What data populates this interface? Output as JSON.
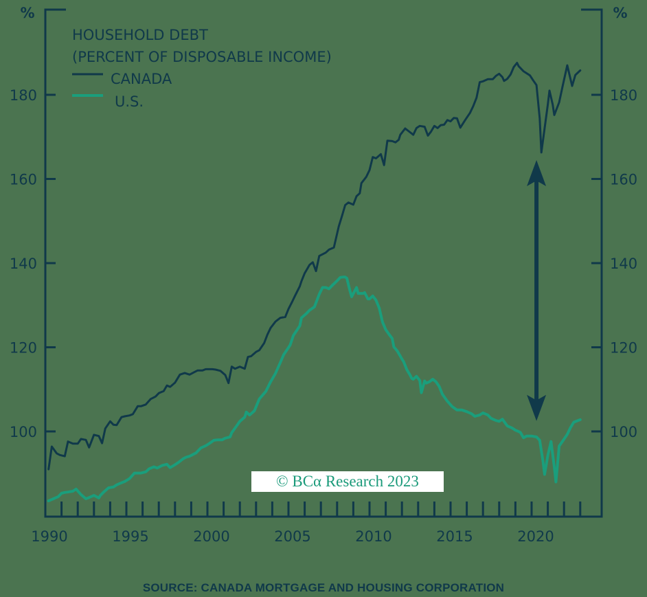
{
  "chart_data": {
    "type": "line",
    "title": "HOUSEHOLD DEBT",
    "subtitle": "(PERCENT OF DISPOSABLE INCOME)",
    "xlabel": "",
    "ylabel": "%",
    "ylabel_right": "%",
    "ylim": [
      80,
      202
    ],
    "xlim": [
      1990,
      2024.3
    ],
    "y_ticks": [
      100,
      120,
      140,
      160,
      180
    ],
    "x_ticks": [
      1990,
      1995,
      2000,
      2005,
      2010,
      2015,
      2020
    ],
    "x_tick_labels": [
      "1990",
      "1995",
      "2000",
      "2005",
      "2010",
      "2015",
      "2020"
    ],
    "grid": false,
    "legend_position": "top-left",
    "source": "SOURCE: CANADA MORTGAGE AND HOUSING CORPORATION",
    "watermark": "© BCα Research 2023",
    "annotations": [
      {
        "type": "double-arrow",
        "x": 2020.3,
        "y_from": 102.5,
        "y_to": 164.5,
        "description": "gap between Canada and U.S. household debt"
      }
    ],
    "series": [
      {
        "name": "CANADA",
        "color": "#10394a",
        "points": [
          [
            1990.2,
            91.0
          ],
          [
            1990.4,
            96.4
          ],
          [
            1990.7,
            94.8
          ],
          [
            1990.9,
            94.4
          ],
          [
            1991.2,
            94.1
          ],
          [
            1991.4,
            97.6
          ],
          [
            1991.7,
            97.1
          ],
          [
            1992.0,
            97.1
          ],
          [
            1992.2,
            98.2
          ],
          [
            1992.5,
            98.0
          ],
          [
            1992.7,
            96.2
          ],
          [
            1993.0,
            99.2
          ],
          [
            1993.3,
            98.9
          ],
          [
            1993.5,
            97.2
          ],
          [
            1993.7,
            100.7
          ],
          [
            1994.0,
            102.4
          ],
          [
            1994.2,
            101.6
          ],
          [
            1994.4,
            101.5
          ],
          [
            1994.7,
            103.4
          ],
          [
            1994.9,
            103.6
          ],
          [
            1995.2,
            103.8
          ],
          [
            1995.4,
            104.1
          ],
          [
            1995.7,
            106.0
          ],
          [
            1995.9,
            106.0
          ],
          [
            1996.2,
            106.4
          ],
          [
            1996.5,
            107.7
          ],
          [
            1996.8,
            108.3
          ],
          [
            1997.0,
            109.1
          ],
          [
            1997.3,
            109.6
          ],
          [
            1997.5,
            110.9
          ],
          [
            1997.7,
            110.6
          ],
          [
            1998.0,
            111.6
          ],
          [
            1998.3,
            113.5
          ],
          [
            1998.6,
            113.9
          ],
          [
            1998.9,
            113.5
          ],
          [
            1999.2,
            114.1
          ],
          [
            1999.4,
            114.5
          ],
          [
            1999.7,
            114.5
          ],
          [
            1999.9,
            114.8
          ],
          [
            2000.3,
            114.8
          ],
          [
            2000.5,
            114.7
          ],
          [
            2000.8,
            114.4
          ],
          [
            2001.1,
            113.4
          ],
          [
            2001.3,
            111.5
          ],
          [
            2001.5,
            115.4
          ],
          [
            2001.7,
            114.9
          ],
          [
            2002.0,
            115.4
          ],
          [
            2002.3,
            114.9
          ],
          [
            2002.5,
            117.7
          ],
          [
            2002.7,
            117.9
          ],
          [
            2003.0,
            118.9
          ],
          [
            2003.2,
            119.3
          ],
          [
            2003.5,
            121.0
          ],
          [
            2003.7,
            123.0
          ],
          [
            2003.9,
            124.6
          ],
          [
            2004.2,
            126.1
          ],
          [
            2004.5,
            127.0
          ],
          [
            2004.8,
            127.2
          ],
          [
            2005.0,
            129.1
          ],
          [
            2005.2,
            130.6
          ],
          [
            2005.4,
            132.2
          ],
          [
            2005.7,
            134.5
          ],
          [
            2005.8,
            135.7
          ],
          [
            2006.0,
            137.6
          ],
          [
            2006.3,
            139.6
          ],
          [
            2006.5,
            140.2
          ],
          [
            2006.7,
            138.1
          ],
          [
            2006.9,
            141.7
          ],
          [
            2007.3,
            142.5
          ],
          [
            2007.5,
            143.2
          ],
          [
            2007.8,
            143.7
          ],
          [
            2008.1,
            148.7
          ],
          [
            2008.3,
            151.2
          ],
          [
            2008.5,
            153.8
          ],
          [
            2008.7,
            154.4
          ],
          [
            2009.0,
            153.9
          ],
          [
            2009.2,
            155.9
          ],
          [
            2009.4,
            156.6
          ],
          [
            2009.5,
            159.0
          ],
          [
            2009.8,
            160.5
          ],
          [
            2010.0,
            162.1
          ],
          [
            2010.2,
            165.2
          ],
          [
            2010.4,
            164.9
          ],
          [
            2010.7,
            165.9
          ],
          [
            2010.9,
            163.3
          ],
          [
            2011.1,
            169.1
          ],
          [
            2011.4,
            169.0
          ],
          [
            2011.6,
            168.7
          ],
          [
            2011.8,
            169.3
          ],
          [
            2011.9,
            170.5
          ],
          [
            2012.2,
            172.0
          ],
          [
            2012.5,
            171.1
          ],
          [
            2012.7,
            170.5
          ],
          [
            2012.9,
            172.1
          ],
          [
            2013.1,
            172.6
          ],
          [
            2013.4,
            172.4
          ],
          [
            2013.6,
            170.3
          ],
          [
            2013.8,
            171.3
          ],
          [
            2014.0,
            172.6
          ],
          [
            2014.2,
            172.1
          ],
          [
            2014.4,
            172.8
          ],
          [
            2014.6,
            172.9
          ],
          [
            2014.8,
            174.0
          ],
          [
            2015.0,
            173.7
          ],
          [
            2015.2,
            174.5
          ],
          [
            2015.4,
            174.4
          ],
          [
            2015.6,
            172.2
          ],
          [
            2015.9,
            174.0
          ],
          [
            2016.2,
            175.7
          ],
          [
            2016.4,
            177.3
          ],
          [
            2016.6,
            179.3
          ],
          [
            2016.8,
            183.0
          ],
          [
            2017.0,
            183.2
          ],
          [
            2017.3,
            183.7
          ],
          [
            2017.6,
            183.7
          ],
          [
            2017.8,
            184.5
          ],
          [
            2018.0,
            185.0
          ],
          [
            2018.2,
            184.2
          ],
          [
            2018.3,
            183.3
          ],
          [
            2018.5,
            183.8
          ],
          [
            2018.7,
            184.8
          ],
          [
            2018.9,
            186.6
          ],
          [
            2019.1,
            187.6
          ],
          [
            2019.2,
            186.8
          ],
          [
            2019.5,
            185.6
          ],
          [
            2019.7,
            185.1
          ],
          [
            2019.9,
            184.6
          ],
          [
            2020.1,
            183.4
          ],
          [
            2020.3,
            182.3
          ],
          [
            2020.5,
            174.4
          ],
          [
            2020.6,
            166.3
          ],
          [
            2020.8,
            172.0
          ],
          [
            2021.0,
            177.7
          ],
          [
            2021.1,
            181.0
          ],
          [
            2021.3,
            177.7
          ],
          [
            2021.4,
            175.2
          ],
          [
            2021.7,
            178.2
          ],
          [
            2021.9,
            181.8
          ],
          [
            2022.2,
            187.0
          ],
          [
            2022.5,
            182.1
          ],
          [
            2022.7,
            184.7
          ],
          [
            2023.0,
            185.8
          ]
        ]
      },
      {
        "name": "U.S.",
        "color": "#1a9e7c",
        "points": [
          [
            1990.2,
            83.5
          ],
          [
            1990.5,
            84.0
          ],
          [
            1990.8,
            84.5
          ],
          [
            1991.0,
            85.3
          ],
          [
            1991.2,
            85.5
          ],
          [
            1991.4,
            85.6
          ],
          [
            1991.7,
            85.8
          ],
          [
            1991.9,
            86.3
          ],
          [
            1992.2,
            85.0
          ],
          [
            1992.5,
            84.0
          ],
          [
            1992.7,
            84.3
          ],
          [
            1993.0,
            84.8
          ],
          [
            1993.3,
            84.2
          ],
          [
            1993.4,
            84.8
          ],
          [
            1993.6,
            85.6
          ],
          [
            1993.9,
            86.6
          ],
          [
            1994.2,
            86.8
          ],
          [
            1994.4,
            87.3
          ],
          [
            1994.7,
            87.8
          ],
          [
            1994.9,
            88.1
          ],
          [
            1995.2,
            88.8
          ],
          [
            1995.5,
            90.1
          ],
          [
            1995.9,
            90.1
          ],
          [
            1996.2,
            90.4
          ],
          [
            1996.4,
            91.1
          ],
          [
            1996.7,
            91.6
          ],
          [
            1996.9,
            91.3
          ],
          [
            1997.2,
            91.9
          ],
          [
            1997.5,
            92.2
          ],
          [
            1997.7,
            91.4
          ],
          [
            1998.0,
            92.1
          ],
          [
            1998.2,
            92.6
          ],
          [
            1998.5,
            93.5
          ],
          [
            1998.7,
            93.9
          ],
          [
            1998.9,
            94.1
          ],
          [
            1999.3,
            94.9
          ],
          [
            1999.6,
            96.1
          ],
          [
            1999.9,
            96.6
          ],
          [
            2000.1,
            97.1
          ],
          [
            2000.4,
            97.9
          ],
          [
            2000.6,
            98.0
          ],
          [
            2000.9,
            98.0
          ],
          [
            2001.1,
            98.4
          ],
          [
            2001.4,
            98.7
          ],
          [
            2001.5,
            99.7
          ],
          [
            2001.8,
            101.3
          ],
          [
            2002.0,
            102.4
          ],
          [
            2002.3,
            103.4
          ],
          [
            2002.4,
            104.6
          ],
          [
            2002.6,
            103.9
          ],
          [
            2002.9,
            104.9
          ],
          [
            2003.2,
            107.7
          ],
          [
            2003.6,
            109.5
          ],
          [
            2003.9,
            111.8
          ],
          [
            2004.2,
            113.8
          ],
          [
            2004.5,
            116.4
          ],
          [
            2004.7,
            118.2
          ],
          [
            2005.1,
            120.5
          ],
          [
            2005.3,
            122.8
          ],
          [
            2005.7,
            125.1
          ],
          [
            2005.8,
            127.0
          ],
          [
            2006.1,
            128.0
          ],
          [
            2006.3,
            128.8
          ],
          [
            2006.6,
            129.6
          ],
          [
            2006.9,
            132.6
          ],
          [
            2007.1,
            134.2
          ],
          [
            2007.3,
            134.2
          ],
          [
            2007.5,
            133.9
          ],
          [
            2007.7,
            134.7
          ],
          [
            2008.0,
            135.8
          ],
          [
            2008.2,
            136.6
          ],
          [
            2008.4,
            136.7
          ],
          [
            2008.5,
            136.7
          ],
          [
            2008.6,
            136.4
          ],
          [
            2008.8,
            133.3
          ],
          [
            2008.9,
            132.0
          ],
          [
            2009.2,
            134.2
          ],
          [
            2009.3,
            132.8
          ],
          [
            2009.6,
            132.8
          ],
          [
            2009.7,
            133.0
          ],
          [
            2009.9,
            131.5
          ],
          [
            2010.0,
            131.5
          ],
          [
            2010.2,
            132.2
          ],
          [
            2010.4,
            131.2
          ],
          [
            2010.6,
            129.3
          ],
          [
            2010.8,
            126.0
          ],
          [
            2011.0,
            124.2
          ],
          [
            2011.2,
            123.1
          ],
          [
            2011.4,
            122.1
          ],
          [
            2011.5,
            120.1
          ],
          [
            2011.7,
            119.2
          ],
          [
            2011.9,
            117.9
          ],
          [
            2012.0,
            117.2
          ],
          [
            2012.1,
            116.6
          ],
          [
            2012.3,
            114.7
          ],
          [
            2012.5,
            113.4
          ],
          [
            2012.6,
            112.6
          ],
          [
            2012.7,
            112.4
          ],
          [
            2012.9,
            113.1
          ],
          [
            2013.1,
            112.1
          ],
          [
            2013.2,
            109.2
          ],
          [
            2013.4,
            112.0
          ],
          [
            2013.5,
            111.5
          ],
          [
            2013.7,
            111.8
          ],
          [
            2013.9,
            112.4
          ],
          [
            2014.1,
            111.8
          ],
          [
            2014.3,
            110.7
          ],
          [
            2014.5,
            108.8
          ],
          [
            2014.8,
            107.2
          ],
          [
            2015.1,
            105.9
          ],
          [
            2015.4,
            105.1
          ],
          [
            2015.7,
            105.1
          ],
          [
            2016.0,
            104.7
          ],
          [
            2016.3,
            104.2
          ],
          [
            2016.5,
            103.6
          ],
          [
            2016.8,
            103.9
          ],
          [
            2017.0,
            104.4
          ],
          [
            2017.3,
            103.9
          ],
          [
            2017.5,
            103.1
          ],
          [
            2017.8,
            102.6
          ],
          [
            2018.0,
            102.4
          ],
          [
            2018.2,
            102.9
          ],
          [
            2018.5,
            101.3
          ],
          [
            2018.8,
            100.8
          ],
          [
            2019.0,
            100.3
          ],
          [
            2019.3,
            99.8
          ],
          [
            2019.5,
            98.5
          ],
          [
            2019.7,
            98.9
          ],
          [
            2020.0,
            98.9
          ],
          [
            2020.3,
            98.7
          ],
          [
            2020.5,
            97.9
          ],
          [
            2020.7,
            93.0
          ],
          [
            2020.8,
            89.8
          ],
          [
            2021.0,
            94.3
          ],
          [
            2021.2,
            97.6
          ],
          [
            2021.4,
            91.6
          ],
          [
            2021.5,
            88.0
          ],
          [
            2021.7,
            96.5
          ],
          [
            2021.9,
            97.6
          ],
          [
            2022.2,
            99.3
          ],
          [
            2022.4,
            100.9
          ],
          [
            2022.6,
            102.2
          ],
          [
            2023.0,
            102.8
          ]
        ]
      }
    ]
  },
  "axes": {
    "left_unit": "%",
    "right_unit": "%"
  },
  "legend": {
    "title_line1": "HOUSEHOLD DEBT",
    "title_line2": "(PERCENT OF DISPOSABLE INCOME)",
    "items": [
      {
        "label": "CANADA",
        "color": "#10394a"
      },
      {
        "label": "U.S.",
        "color": "#1a9e7c"
      }
    ]
  },
  "footer": {
    "source": "SOURCE: CANADA MORTGAGE AND HOUSING CORPORATION",
    "watermark": "© BCα Research 2023"
  }
}
